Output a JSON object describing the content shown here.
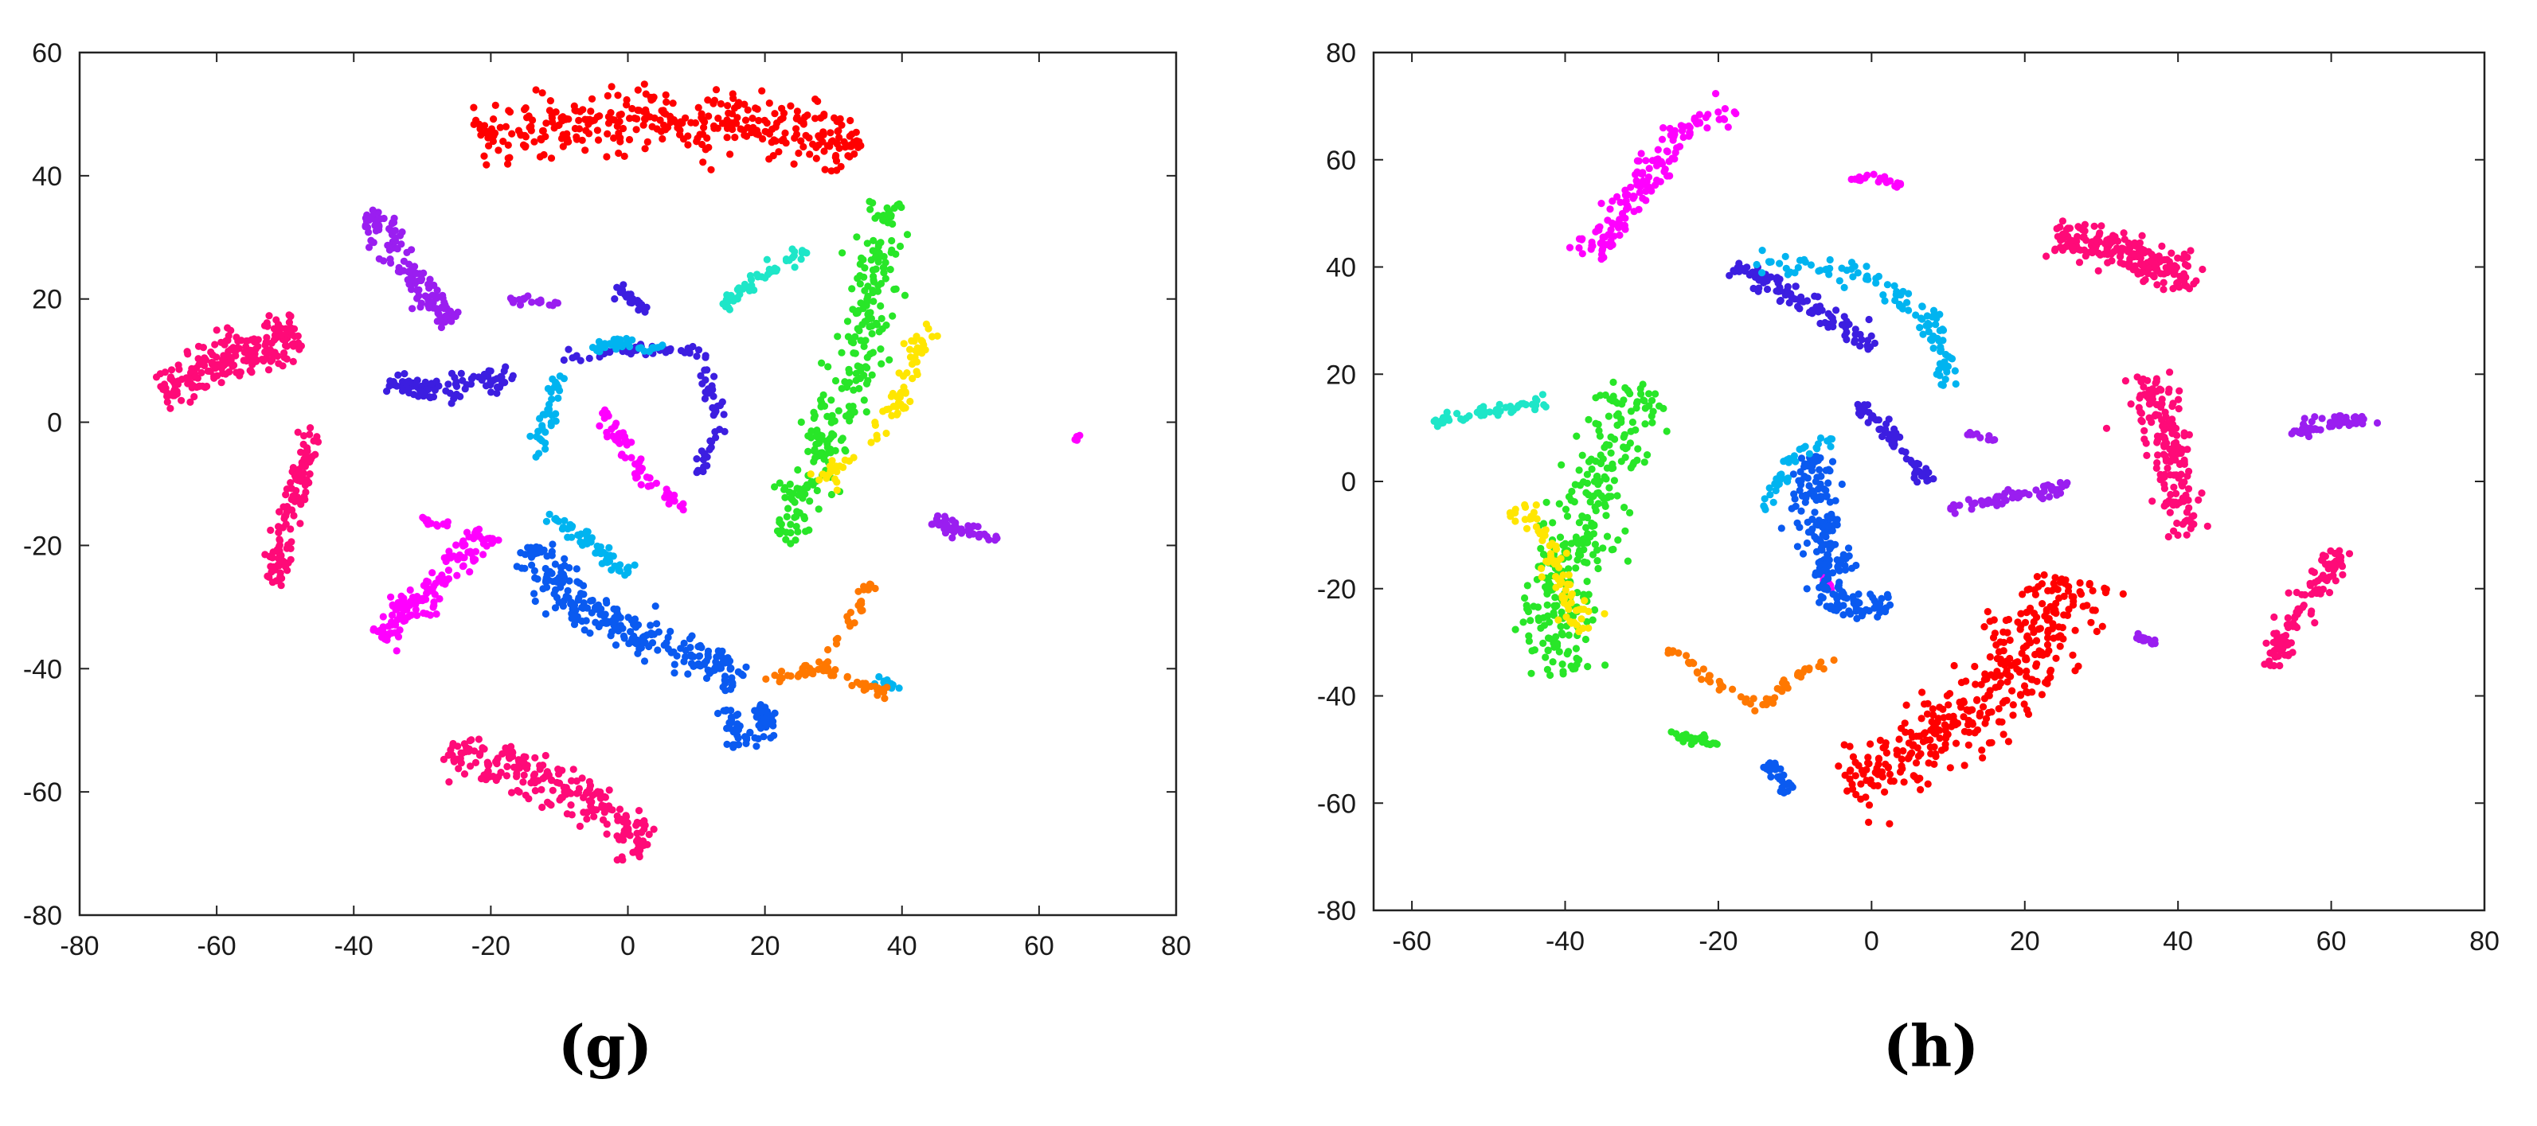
{
  "panels": [
    {
      "caption": "(g)",
      "chart_data": {
        "type": "scatter",
        "title": "",
        "xlabel": "",
        "ylabel": "",
        "xlim": [
          -80,
          80
        ],
        "ylim": [
          -80,
          60
        ],
        "xticks": [
          -80,
          -60,
          -40,
          -20,
          0,
          20,
          40,
          60,
          80
        ],
        "yticks": [
          -80,
          -60,
          -40,
          -20,
          0,
          20,
          40,
          60
        ],
        "grid": false,
        "legend": "none",
        "clusters": [
          {
            "color": "#ff0000",
            "path": [
              [
                -22,
                46
              ],
              [
                -10,
                48
              ],
              [
                5,
                50
              ],
              [
                20,
                48
              ],
              [
                34,
                45
              ]
            ],
            "width": 4,
            "n": 360
          },
          {
            "color": "#ff0a78",
            "path": [
              [
                -68,
                5
              ],
              [
                -62,
                8
              ],
              [
                -55,
                12
              ],
              [
                -48,
                14
              ]
            ],
            "width": 3,
            "n": 220
          },
          {
            "color": "#ff0a78",
            "path": [
              [
                -46,
                -1
              ],
              [
                -48,
                -10
              ],
              [
                -50,
                -18
              ],
              [
                -52,
                -26
              ]
            ],
            "width": 1.5,
            "n": 120
          },
          {
            "color": "#ff0a78",
            "path": [
              [
                -26,
                -53
              ],
              [
                -15,
                -57
              ],
              [
                -5,
                -62
              ],
              [
                3,
                -69
              ]
            ],
            "width": 3,
            "n": 220
          },
          {
            "color": "#9a1ef0",
            "path": [
              [
                -38,
                34
              ],
              [
                -34,
                28
              ],
              [
                -30,
                22
              ],
              [
                -26,
                16
              ]
            ],
            "width": 2,
            "n": 140
          },
          {
            "color": "#9a1ef0",
            "path": [
              [
                -17,
                20
              ],
              [
                -10,
                19
              ]
            ],
            "width": 0.6,
            "n": 20
          },
          {
            "color": "#9a1ef0",
            "path": [
              [
                44,
                -16
              ],
              [
                48,
                -17
              ],
              [
                54,
                -19
              ]
            ],
            "width": 1,
            "n": 50
          },
          {
            "color": "#ff00ff",
            "path": [
              [
                -36,
                -35
              ],
              [
                -30,
                -28
              ],
              [
                -24,
                -22
              ],
              [
                -20,
                -18
              ]
            ],
            "width": 2,
            "n": 140
          },
          {
            "color": "#ff00ff",
            "path": [
              [
                -4,
                2
              ],
              [
                2,
                -8
              ],
              [
                8,
                -14
              ]
            ],
            "width": 1.2,
            "n": 60
          },
          {
            "color": "#ff00ff",
            "path": [
              [
                -30,
                -16
              ],
              [
                -26,
                -17
              ]
            ],
            "width": 0.5,
            "n": 12
          },
          {
            "color": "#ff00ff",
            "path": [
              [
                66,
                -2
              ],
              [
                65,
                -3
              ]
            ],
            "width": 0.4,
            "n": 8
          },
          {
            "color": "#3c1ee0",
            "path": [
              [
                -35,
                7
              ],
              [
                -28,
                5
              ],
              [
                -22,
                6
              ],
              [
                -17,
                8
              ]
            ],
            "width": 1.5,
            "n": 90
          },
          {
            "color": "#3c1ee0",
            "path": [
              [
                -2,
                22
              ],
              [
                1,
                20
              ],
              [
                3,
                18
              ]
            ],
            "width": 0.8,
            "n": 25
          },
          {
            "color": "#3c1ee0",
            "path": [
              [
                -10,
                10
              ],
              [
                0,
                12
              ],
              [
                10,
                12
              ],
              [
                14,
                0
              ],
              [
                10,
                -8
              ]
            ],
            "width": 1,
            "n": 90
          },
          {
            "color": "#0a5af0",
            "path": [
              [
                -14,
                -20
              ],
              [
                -8,
                -30
              ],
              [
                0,
                -34
              ],
              [
                10,
                -38
              ],
              [
                16,
                -42
              ]
            ],
            "width": 2.5,
            "n": 260
          },
          {
            "color": "#0a5af0",
            "path": [
              [
                14,
                -47
              ],
              [
                17,
                -52
              ],
              [
                21,
                -48
              ],
              [
                18,
                -46
              ]
            ],
            "width": 1.5,
            "n": 70
          },
          {
            "color": "#00b4f0",
            "path": [
              [
                -12,
                -15
              ],
              [
                -5,
                -20
              ],
              [
                0,
                -25
              ]
            ],
            "width": 1,
            "n": 60
          },
          {
            "color": "#00b4f0",
            "path": [
              [
                -10,
                8
              ],
              [
                -12,
                0
              ],
              [
                -13,
                -6
              ]
            ],
            "width": 1,
            "n": 40
          },
          {
            "color": "#00b4f0",
            "path": [
              [
                -5,
                12
              ],
              [
                0,
                13
              ],
              [
                5,
                12
              ]
            ],
            "width": 0.8,
            "n": 35
          },
          {
            "color": "#00b4f0",
            "path": [
              [
                36,
                -42
              ],
              [
                40,
                -43
              ]
            ],
            "width": 0.6,
            "n": 15
          },
          {
            "color": "#1ee6c8",
            "path": [
              [
                14,
                19
              ],
              [
                20,
                24
              ],
              [
                26,
                28
              ]
            ],
            "width": 0.8,
            "n": 50
          },
          {
            "color": "#28e628",
            "path": [
              [
                38,
                36
              ],
              [
                36,
                20
              ],
              [
                33,
                8
              ],
              [
                28,
                -5
              ],
              [
                22,
                -20
              ]
            ],
            "width": 3,
            "n": 280
          },
          {
            "color": "#ffe600",
            "path": [
              [
                44,
                16
              ],
              [
                40,
                5
              ],
              [
                36,
                -3
              ],
              [
                28,
                -10
              ]
            ],
            "width": 1.5,
            "n": 80
          },
          {
            "color": "#ff7800",
            "path": [
              [
                20,
                -42
              ],
              [
                28,
                -40
              ],
              [
                33,
                -32
              ],
              [
                35,
                -26
              ]
            ],
            "width": 0.8,
            "n": 50
          },
          {
            "color": "#ff7800",
            "path": [
              [
                28,
                -40
              ],
              [
                35,
                -43
              ],
              [
                38,
                -44
              ]
            ],
            "width": 0.8,
            "n": 30
          }
        ]
      }
    },
    {
      "caption": "(h)",
      "chart_data": {
        "type": "scatter",
        "title": "",
        "xlabel": "",
        "ylabel": "",
        "xlim": [
          -65,
          80
        ],
        "ylim": [
          -80,
          80
        ],
        "xticks": [
          -60,
          -40,
          -20,
          0,
          20,
          40,
          60,
          80
        ],
        "yticks": [
          -80,
          -60,
          -40,
          -20,
          0,
          20,
          40,
          60,
          80
        ],
        "grid": false,
        "legend": "none",
        "clusters": [
          {
            "color": "#ff0000",
            "path": [
              [
                -4,
                -57
              ],
              [
                5,
                -52
              ],
              [
                15,
                -42
              ],
              [
                22,
                -30
              ],
              [
                26,
                -18
              ]
            ],
            "width": 5,
            "n": 380
          },
          {
            "color": "#ff0a78",
            "path": [
              [
                24,
                46
              ],
              [
                30,
                44
              ],
              [
                36,
                42
              ],
              [
                42,
                37
              ]
            ],
            "width": 3,
            "n": 200
          },
          {
            "color": "#ff0a78",
            "path": [
              [
                36,
                20
              ],
              [
                38,
                10
              ],
              [
                40,
                0
              ],
              [
                41,
                -10
              ]
            ],
            "width": 2.5,
            "n": 170
          },
          {
            "color": "#ff0a78",
            "path": [
              [
                52,
                -35
              ],
              [
                54,
                -28
              ],
              [
                58,
                -20
              ],
              [
                62,
                -13
              ]
            ],
            "width": 1.5,
            "n": 110
          },
          {
            "color": "#ff00ff",
            "path": [
              [
                -37,
                42
              ],
              [
                -32,
                52
              ],
              [
                -27,
                62
              ],
              [
                -22,
                68
              ],
              [
                -18,
                70
              ]
            ],
            "width": 2,
            "n": 150
          },
          {
            "color": "#ff00ff",
            "path": [
              [
                -3,
                56
              ],
              [
                0,
                57
              ],
              [
                4,
                55
              ]
            ],
            "width": 0.6,
            "n": 20
          },
          {
            "color": "#ff00ff",
            "path": [
              [
                -7,
                -17
              ],
              [
                -5,
                -20
              ]
            ],
            "width": 0.5,
            "n": 10
          },
          {
            "color": "#9a1ef0",
            "path": [
              [
                55,
                9
              ],
              [
                60,
                11
              ],
              [
                66,
                12
              ]
            ],
            "width": 1.2,
            "n": 55
          },
          {
            "color": "#9a1ef0",
            "path": [
              [
                10,
                -5
              ],
              [
                18,
                -3
              ],
              [
                26,
                -1
              ]
            ],
            "width": 1,
            "n": 60
          },
          {
            "color": "#9a1ef0",
            "path": [
              [
                34,
                -29
              ],
              [
                37,
                -30
              ]
            ],
            "width": 0.6,
            "n": 15
          },
          {
            "color": "#9a1ef0",
            "path": [
              [
                12,
                9
              ],
              [
                16,
                8
              ]
            ],
            "width": 0.4,
            "n": 10
          },
          {
            "color": "#3c1ee0",
            "path": [
              [
                -18,
                40
              ],
              [
                -12,
                36
              ],
              [
                -5,
                30
              ],
              [
                0,
                25
              ]
            ],
            "width": 1.5,
            "n": 100
          },
          {
            "color": "#3c1ee0",
            "path": [
              [
                -2,
                15
              ],
              [
                3,
                8
              ],
              [
                6,
                2
              ],
              [
                8,
                0
              ]
            ],
            "width": 1,
            "n": 60
          },
          {
            "color": "#0a5af0",
            "path": [
              [
                -8,
                5
              ],
              [
                -7,
                -5
              ],
              [
                -6,
                -15
              ],
              [
                -4,
                -24
              ],
              [
                3,
                -22
              ]
            ],
            "width": 2.5,
            "n": 220
          },
          {
            "color": "#0a5af0",
            "path": [
              [
                -14,
                -52
              ],
              [
                -10,
                -58
              ]
            ],
            "width": 1,
            "n": 30
          },
          {
            "color": "#00b4f0",
            "path": [
              [
                -15,
                41
              ],
              [
                -8,
                40
              ],
              [
                0,
                38
              ],
              [
                8,
                30
              ],
              [
                10,
                18
              ]
            ],
            "width": 1.5,
            "n": 110
          },
          {
            "color": "#00b4f0",
            "path": [
              [
                -14,
                -5
              ],
              [
                -10,
                5
              ],
              [
                -5,
                8
              ]
            ],
            "width": 0.8,
            "n": 40
          },
          {
            "color": "#1ee6c8",
            "path": [
              [
                -57,
                11
              ],
              [
                -50,
                13
              ],
              [
                -42,
                15
              ]
            ],
            "width": 1,
            "n": 50
          },
          {
            "color": "#28e628",
            "path": [
              [
                -30,
                18
              ],
              [
                -34,
                5
              ],
              [
                -38,
                -10
              ],
              [
                -42,
                -25
              ],
              [
                -40,
                -36
              ]
            ],
            "width": 4,
            "n": 320
          },
          {
            "color": "#28e628",
            "path": [
              [
                -26,
                -47
              ],
              [
                -20,
                -49
              ]
            ],
            "width": 0.8,
            "n": 25
          },
          {
            "color": "#ffe600",
            "path": [
              [
                -46,
                -5
              ],
              [
                -42,
                -12
              ],
              [
                -40,
                -20
              ],
              [
                -38,
                -28
              ]
            ],
            "width": 1.5,
            "n": 80
          },
          {
            "color": "#ff7800",
            "path": [
              [
                -26,
                -31
              ],
              [
                -20,
                -38
              ],
              [
                -14,
                -42
              ],
              [
                -10,
                -36
              ],
              [
                -5,
                -33
              ]
            ],
            "width": 0.8,
            "n": 60
          }
        ]
      }
    }
  ]
}
